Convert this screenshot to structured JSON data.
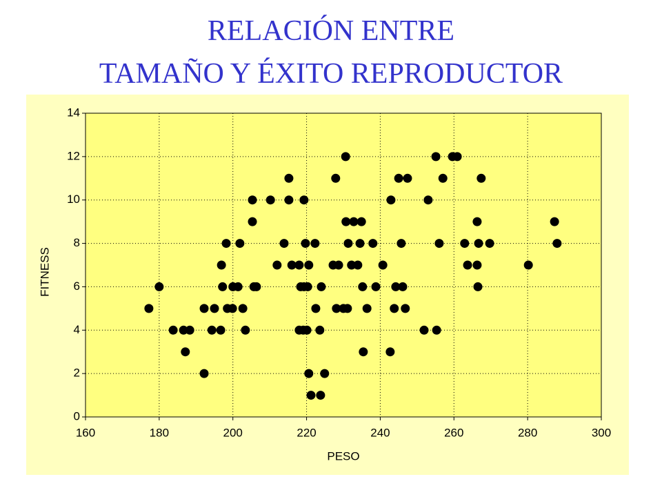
{
  "chart_data": {
    "type": "scatter",
    "title": [
      "RELACIÓN ENTRE",
      "TAMAÑO Y ÉXITO REPRODUCTOR"
    ],
    "x_label": "PESO",
    "y_label": "FITNESS",
    "x": [
      177.2,
      192.2,
      195,
      198.5,
      199.9,
      202.7,
      222.5,
      228.1,
      230,
      231.1,
      236.4,
      243.8,
      246.8,
      180,
      197.2,
      200,
      201.4,
      205.7,
      206.4,
      218.4,
      219.3,
      220.3,
      224,
      235.2,
      238.8,
      244.2,
      246.1,
      266.5,
      183.8,
      186.6,
      188.3,
      194.3,
      196.7,
      203.4,
      218,
      219.1,
      220.1,
      223.6,
      251.9,
      255.3,
      187.1,
      235.4,
      242.7,
      192.2,
      220.6,
      224.9,
      221.2,
      223.8,
      196.9,
      212,
      216,
      218,
      220.6,
      227.2,
      228.7,
      232.2,
      233.9,
      240.7,
      263.7,
      266.3,
      280.2,
      198.2,
      201.9,
      213.9,
      219.7,
      222.3,
      231.3,
      234.5,
      238,
      245.7,
      256,
      262.9,
      266.7,
      269.7,
      288,
      205.3,
      230.7,
      232.8,
      234.9,
      266.3,
      287.3,
      205.3,
      210.2,
      215.2,
      219.3,
      242.9,
      253,
      215.2,
      227.9,
      245,
      247.4,
      257,
      267.4,
      230.6,
      255.1,
      259.6,
      260.9
    ],
    "values": [
      5,
      5,
      5,
      5,
      5,
      5,
      5,
      5,
      5,
      5,
      5,
      5,
      5,
      6,
      6,
      6,
      6,
      6,
      6,
      6,
      6,
      6,
      6,
      6,
      6,
      6,
      6,
      6,
      4,
      4,
      4,
      4,
      4,
      4,
      4,
      4,
      4,
      4,
      4,
      4,
      3,
      3,
      3,
      2,
      2,
      2,
      1,
      1,
      7,
      7,
      7,
      7,
      7,
      7,
      7,
      7,
      7,
      7,
      7,
      7,
      7,
      8,
      8,
      8,
      8,
      8,
      8,
      8,
      8,
      8,
      8,
      8,
      8,
      8,
      8,
      9,
      9,
      9,
      9,
      9,
      9,
      10,
      10,
      10,
      10,
      10,
      10,
      11,
      11,
      11,
      11,
      11,
      11,
      12,
      12,
      12,
      12
    ],
    "color": "#000000",
    "xlim": [
      160,
      300
    ],
    "xticks": [
      160,
      180,
      200,
      220,
      240,
      260,
      280,
      300
    ],
    "ylim": [
      0,
      14
    ],
    "yticks": [
      0,
      2,
      4,
      6,
      8,
      10,
      12,
      14
    ],
    "grid": true
  }
}
